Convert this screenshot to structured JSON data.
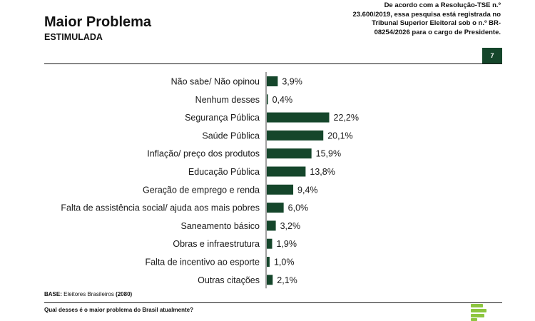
{
  "header": {
    "title": "Maior Problema",
    "subtitle": "ESTIMULADA",
    "notice": "De acordo com a Resolução-TSE n.º 23.600/2019, essa pesquisa está registrada no Tribunal Superior Eleitoral sob o n.º BR-08254/2026 para o cargo de Presidente.",
    "page_number": "7"
  },
  "footer": {
    "base_label": "BASE:",
    "base_text": "Eleitores Brasileiros",
    "base_count": "(2080)",
    "question": "Qual desses é o maior problema do Brasil atualmente?"
  },
  "colors": {
    "bar": "#15462b",
    "logo": "#8dc63f"
  },
  "chart_data": {
    "type": "bar",
    "orientation": "horizontal",
    "categories": [
      "Não sabe/ Não opinou",
      "Nenhum desses",
      "Segurança Pública",
      "Saúde Pública",
      "Inflação/ preço dos produtos",
      "Educação Pública",
      "Geração de emprego e renda",
      "Falta de assistência social/ ajuda aos mais pobres",
      "Saneamento básico",
      "Obras e infraestrutura",
      "Falta de incentivo ao esporte",
      "Outras citações"
    ],
    "values": [
      3.9,
      0.4,
      22.2,
      20.1,
      15.9,
      13.8,
      9.4,
      6.0,
      3.2,
      1.9,
      1.0,
      2.1
    ],
    "value_labels": [
      "3,9%",
      "0,4%",
      "22,2%",
      "20,1%",
      "15,9%",
      "13,8%",
      "9,4%",
      "6,0%",
      "3,2%",
      "1,9%",
      "1,0%",
      "2,1%"
    ],
    "title": "Maior Problema",
    "unit": "%",
    "xlim": [
      0,
      25
    ],
    "grid": false,
    "legend": "none"
  }
}
